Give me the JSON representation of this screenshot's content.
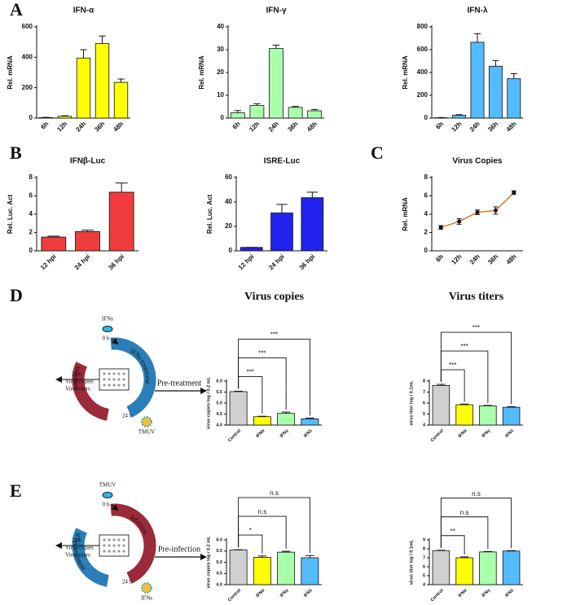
{
  "panel_labels": [
    "A",
    "B",
    "C",
    "D",
    "E"
  ],
  "chart_data": [
    {
      "type": "bar",
      "title": "IFN-α",
      "ylabel": "Rel. mRNA",
      "categories": [
        "6h",
        "12h",
        "24h",
        "36h",
        "48h"
      ],
      "values": [
        3,
        12,
        395,
        490,
        235
      ],
      "errors": [
        2,
        3,
        55,
        50,
        22
      ],
      "color": "#ffff00",
      "ylim": [
        0,
        600
      ],
      "yticks": [
        0,
        200,
        400,
        600
      ]
    },
    {
      "type": "bar",
      "title": "IFN-γ",
      "ylabel": "Rel. mRNA",
      "categories": [
        "6h",
        "12h",
        "24h",
        "36h",
        "48h"
      ],
      "values": [
        2.3,
        5.5,
        30.5,
        4.7,
        3.2
      ],
      "errors": [
        1,
        0.8,
        1.5,
        0.4,
        0.6
      ],
      "color": "#aaffaa",
      "ylim": [
        0,
        40
      ],
      "yticks": [
        0,
        10,
        20,
        30,
        40
      ]
    },
    {
      "type": "bar",
      "title": "IFN-λ",
      "ylabel": "Rel. mRNA",
      "categories": [
        "6h",
        "12h",
        "24h",
        "36h",
        "48h"
      ],
      "values": [
        3,
        25,
        665,
        455,
        345
      ],
      "errors": [
        2,
        5,
        75,
        50,
        45
      ],
      "color": "#55bbff",
      "ylim": [
        0,
        800
      ],
      "yticks": [
        0,
        200,
        400,
        600,
        800
      ]
    },
    {
      "type": "bar",
      "title": "IFNβ-Luc",
      "ylabel": "Rel. Luc. Act",
      "categories": [
        "12 hpi",
        "24 hpi",
        "36 hpi"
      ],
      "values": [
        1.5,
        2.1,
        6.4
      ],
      "errors": [
        0.1,
        0.15,
        1.0
      ],
      "color": "#f03c3c",
      "ylim": [
        0,
        8
      ],
      "yticks": [
        0,
        2,
        4,
        6,
        8
      ]
    },
    {
      "type": "bar",
      "title": "ISRE-Luc",
      "ylabel": "Rel. Luc. Act",
      "categories": [
        "12 hpi",
        "24 hpi",
        "36 hpi"
      ],
      "values": [
        2.8,
        31,
        43.5
      ],
      "errors": [
        0,
        7,
        4.5
      ],
      "color": "#2222ee",
      "ylim": [
        0,
        60
      ],
      "yticks": [
        0,
        20,
        40,
        60
      ]
    },
    {
      "type": "line",
      "title": "Virus Copies",
      "ylabel": "Rel. mRNA",
      "categories": [
        "6h",
        "12h",
        "24h",
        "36h",
        "48h"
      ],
      "values": [
        2.55,
        3.2,
        4.2,
        4.4,
        6.35
      ],
      "errors": [
        0.2,
        0.3,
        0.25,
        0.4,
        0.2
      ],
      "color": "#e06010",
      "ylim": [
        0,
        8
      ],
      "yticks": [
        0,
        2,
        4,
        6,
        8
      ]
    },
    {
      "type": "bar",
      "title": "Virus copies",
      "ylabel": "virus copies log / 0.2 mL",
      "categories": [
        "Control",
        "IFNα",
        "IFNγ",
        "IFNλ"
      ],
      "values": [
        5.52,
        4.38,
        4.53,
        4.28
      ],
      "errors": [
        0.02,
        0.02,
        0.06,
        0.04
      ],
      "colors": [
        "#d0d0d0",
        "#ffff00",
        "#aaffaa",
        "#55bbff"
      ],
      "ylim": [
        4,
        6
      ],
      "yticks": [
        {
          "value": 4,
          "label": "4.0"
        },
        4.5,
        {
          "value": 5,
          "label": "5.0"
        },
        5.5,
        {
          "value": 6,
          "label": "6.0"
        }
      ],
      "significance": [
        null,
        "***",
        "***",
        "***"
      ]
    },
    {
      "type": "bar",
      "title": "Virus titers",
      "ylabel": "virus titer log / 0.1mL",
      "categories": [
        "Control",
        "IFNα",
        "IFNγ",
        "IFNλ"
      ],
      "values": [
        7.6,
        5.85,
        5.75,
        5.62
      ],
      "errors": [
        0.1,
        0.06,
        0.04,
        0.06
      ],
      "colors": [
        "#d0d0d0",
        "#ffff00",
        "#aaffaa",
        "#55bbff"
      ],
      "ylim": [
        4,
        8
      ],
      "yticks": [
        4,
        5,
        6,
        7,
        8
      ],
      "significance": [
        null,
        "***",
        "***",
        "***"
      ]
    },
    {
      "type": "bar",
      "ylabel": "virus copies log / 0.2 mL",
      "categories": [
        "Control",
        "IFNα",
        "IFNγ",
        "IFNλ"
      ],
      "values": [
        5.55,
        5.22,
        5.45,
        5.2
      ],
      "errors": [
        0.01,
        0.06,
        0.04,
        0.1
      ],
      "colors": [
        "#d0d0d0",
        "#ffff00",
        "#aaffaa",
        "#55bbff"
      ],
      "ylim": [
        4,
        6
      ],
      "yticks": [
        {
          "value": 4,
          "label": "4.0"
        },
        4.5,
        {
          "value": 5,
          "label": "5.0"
        },
        5.5,
        {
          "value": 6,
          "label": "6.0"
        }
      ],
      "significance": [
        null,
        "*",
        "n.s",
        "n.s"
      ]
    },
    {
      "type": "bar",
      "ylabel": "virus titer log / 0.1mL",
      "categories": [
        "Control",
        "IFNα",
        "IFNγ",
        "IFNλ"
      ],
      "values": [
        7.8,
        7.0,
        7.65,
        7.75
      ],
      "errors": [
        0.04,
        0.1,
        0.05,
        0.05
      ],
      "colors": [
        "#d0d0d0",
        "#ffff00",
        "#aaffaa",
        "#55bbff"
      ],
      "ylim": [
        4,
        9
      ],
      "yticks": [
        4,
        5,
        6,
        7,
        8,
        9
      ],
      "significance": [
        null,
        "**",
        "n.s",
        "n.s"
      ]
    }
  ],
  "diagrams": [
    {
      "agent_top": "IFNs",
      "time_start": "0 h",
      "ring_upper": "IFNs treatment",
      "ring_lower": "Infection",
      "time_left": "24 h",
      "readout_1": "Virus copies",
      "readout_2": "Virus titers",
      "time_bottom": "24 h",
      "agent_bottom": "TMUV",
      "arrow_label": "Pre-treatment"
    },
    {
      "agent_top": "TMUV",
      "time_start": "0 h",
      "ring_upper": "Infection",
      "ring_lower": "IFNs treatment",
      "time_left": "24 h",
      "readout_1": "Virus copies",
      "readout_2": "Virus titers",
      "time_bottom": "24 h",
      "agent_bottom": "IFNs",
      "arrow_label": "Pre-infection"
    }
  ]
}
